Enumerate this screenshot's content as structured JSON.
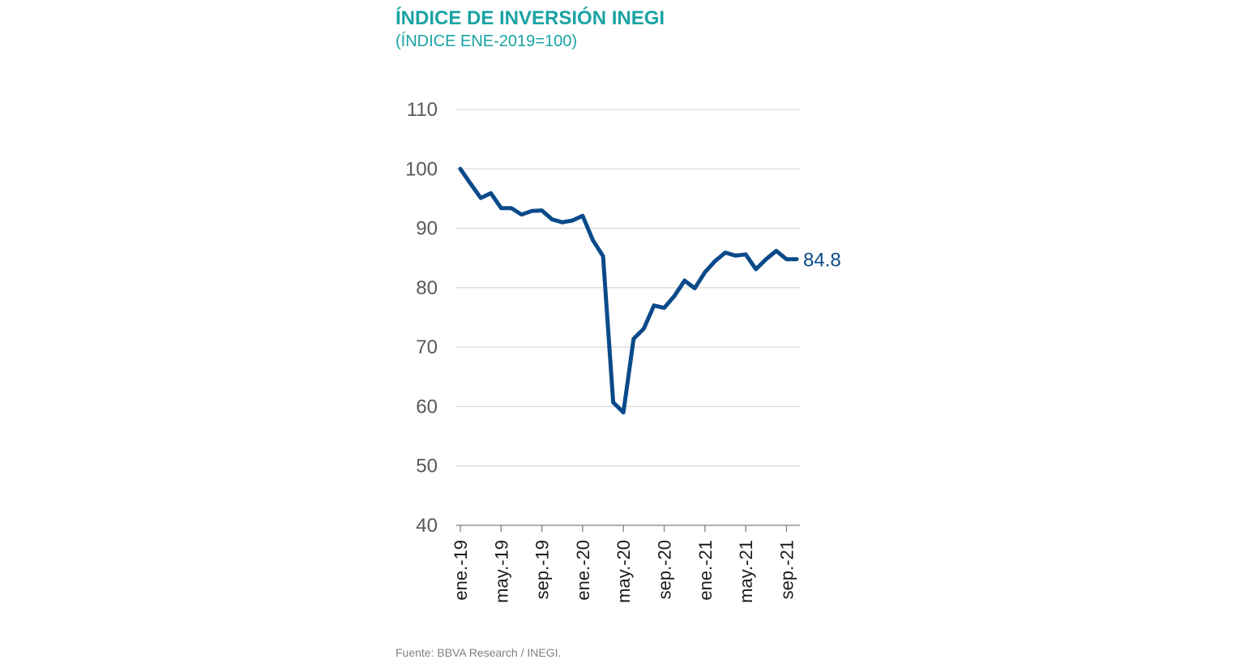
{
  "header": {
    "title": "ÍNDICE DE INVERSIÓN INEGI",
    "subtitle": "(ÍNDICE ENE-2019=100)"
  },
  "footer": {
    "source": "Fuente: BBVA Research / INEGI."
  },
  "colors": {
    "title": "#1aa3a3",
    "line": "#0a4a8a",
    "grid": "#d9d9d9",
    "axis": "#7f7f7f",
    "tick_text": "#595959"
  },
  "chart_data": {
    "type": "line",
    "title": "ÍNDICE DE INVERSIÓN INEGI",
    "subtitle": "(ÍNDICE ENE-2019=100)",
    "xlabel": "",
    "ylabel": "",
    "ylim": [
      40,
      110
    ],
    "yticks": [
      40,
      50,
      60,
      70,
      80,
      90,
      100,
      110
    ],
    "grid": true,
    "legend": "none",
    "x": [
      "ene.-19",
      "feb.-19",
      "mar.-19",
      "abr.-19",
      "may.-19",
      "jun.-19",
      "jul.-19",
      "ago.-19",
      "sep.-19",
      "oct.-19",
      "nov.-19",
      "dic.-19",
      "ene.-20",
      "feb.-20",
      "mar.-20",
      "abr.-20",
      "may.-20",
      "jun.-20",
      "jul.-20",
      "ago.-20",
      "sep.-20",
      "oct.-20",
      "nov.-20",
      "dic.-20",
      "ene.-21",
      "feb.-21",
      "mar.-21",
      "abr.-21",
      "may.-21",
      "jun.-21",
      "jul.-21",
      "ago.-21",
      "sep.-21",
      "oct.-21"
    ],
    "x_tick_labels": [
      "ene.-19",
      "may.-19",
      "sep.-19",
      "ene.-20",
      "may.-20",
      "sep.-20",
      "ene.-21",
      "may.-21",
      "sep.-21"
    ],
    "series": [
      {
        "values": [
          100.0,
          97.5,
          95.1,
          95.9,
          93.4,
          93.4,
          92.3,
          92.9,
          93.0,
          91.5,
          91.0,
          91.3,
          92.1,
          88.0,
          85.3,
          60.7,
          59.0,
          71.4,
          73.1,
          77.0,
          76.6,
          78.6,
          81.2,
          79.9,
          82.6,
          84.5,
          85.9,
          85.4,
          85.6,
          83.1,
          84.8,
          86.2,
          84.8,
          84.8
        ]
      }
    ],
    "end_label": "84.8"
  }
}
